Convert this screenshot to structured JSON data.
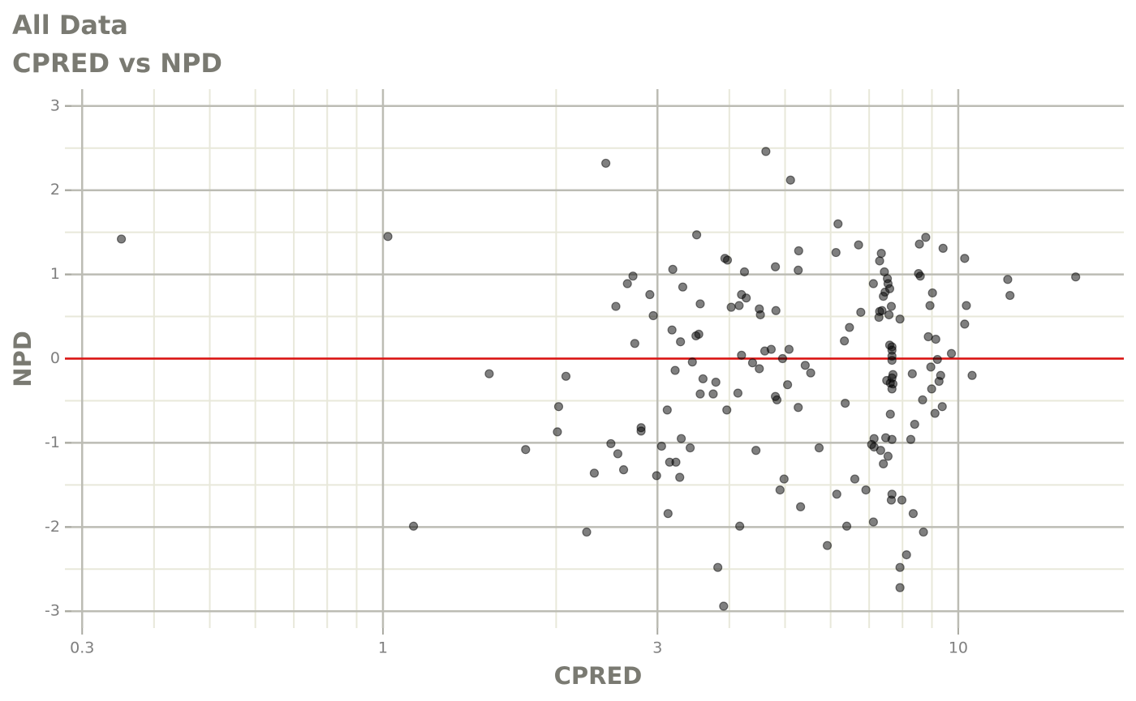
{
  "chart_data": {
    "type": "scatter",
    "title": "All Data",
    "subtitle": "CPRED vs NPD",
    "x_label": "CPRED",
    "y_label": "NPD",
    "log_x": true,
    "grid": true,
    "xlim": [
      0.28,
      19.4
    ],
    "xticks": [
      0.3,
      1,
      3,
      10
    ],
    "x_minor_grid": [
      0.4,
      0.5,
      0.6,
      0.7,
      0.8,
      0.9,
      2,
      4,
      5,
      6,
      7,
      8,
      9
    ],
    "ylim": [
      -3.2,
      3.2
    ],
    "yticks": [
      -3,
      -2,
      -1,
      0,
      1,
      2,
      3
    ],
    "y_minor_grid": [
      -2.5,
      -1.5,
      -0.5,
      0.5,
      1.5,
      2.5
    ],
    "reference_line": {
      "value": 0,
      "color": "#dd1111"
    },
    "color": "#000000",
    "opacity": 0.5,
    "x": [
      0.351,
      1.02,
      1.13,
      1.53,
      1.77,
      2.01,
      2.02,
      2.08,
      2.26,
      2.33,
      2.44,
      2.49,
      2.54,
      2.56,
      2.62,
      2.66,
      2.72,
      2.74,
      2.81,
      2.81,
      2.91,
      2.95,
      2.99,
      3.05,
      3.12,
      3.13,
      3.15,
      3.18,
      3.19,
      3.22,
      3.23,
      3.28,
      3.29,
      3.3,
      3.32,
      3.42,
      3.45,
      3.5,
      3.51,
      3.54,
      3.56,
      3.56,
      3.6,
      3.75,
      3.79,
      3.82,
      3.91,
      3.93,
      3.97,
      3.96,
      4.03,
      4.14,
      4.16,
      4.17,
      4.2,
      4.2,
      4.25,
      4.28,
      4.39,
      4.45,
      4.51,
      4.51,
      4.53,
      4.61,
      4.63,
      4.73,
      4.81,
      4.81,
      4.82,
      4.84,
      4.9,
      4.95,
      4.98,
      5.05,
      5.08,
      5.11,
      5.27,
      5.28,
      5.27,
      5.32,
      5.42,
      5.54,
      5.73,
      5.92,
      6.13,
      6.15,
      6.18,
      6.34,
      6.36,
      6.4,
      6.47,
      6.61,
      6.71,
      6.77,
      6.91,
      7.07,
      7.12,
      7.12,
      7.14,
      7.14,
      7.28,
      7.3,
      7.3,
      7.33,
      7.35,
      7.37,
      7.41,
      7.41,
      7.44,
      7.46,
      7.48,
      7.51,
      7.53,
      7.55,
      7.55,
      7.58,
      7.6,
      7.6,
      7.62,
      7.62,
      7.65,
      7.65,
      7.67,
      7.67,
      7.67,
      7.67,
      7.67,
      7.67,
      7.67,
      7.67,
      7.7,
      7.7,
      7.92,
      7.92,
      7.92,
      7.98,
      8.13,
      8.27,
      8.32,
      8.4,
      8.35,
      8.53,
      8.56,
      8.59,
      8.67,
      8.7,
      8.78,
      8.87,
      8.93,
      8.96,
      8.99,
      9.02,
      9.11,
      9.14,
      9.2,
      9.26,
      9.32,
      9.38,
      9.41,
      9.73,
      10.26,
      10.26,
      10.33,
      10.57,
      12.19,
      12.3,
      16.0
    ],
    "values": [
      1.42,
      1.45,
      -1.99,
      -0.18,
      -1.08,
      -0.87,
      -0.57,
      -0.21,
      -2.06,
      -1.36,
      2.32,
      -1.01,
      0.62,
      -1.13,
      -1.32,
      0.89,
      0.98,
      0.18,
      -0.82,
      -0.86,
      0.76,
      0.51,
      -1.39,
      -1.04,
      -0.61,
      -1.84,
      -1.23,
      0.34,
      1.06,
      -0.14,
      -1.23,
      -1.41,
      0.2,
      -0.95,
      0.85,
      -1.06,
      -0.04,
      0.27,
      1.47,
      0.29,
      0.65,
      -0.42,
      -0.24,
      -0.42,
      -0.28,
      -2.48,
      -2.94,
      1.19,
      1.17,
      -0.61,
      0.61,
      -0.41,
      0.63,
      -1.99,
      0.04,
      0.76,
      1.03,
      0.72,
      -0.05,
      -1.09,
      -0.12,
      0.59,
      0.52,
      0.09,
      2.46,
      0.11,
      -0.45,
      1.09,
      0.57,
      -0.49,
      -1.56,
      0.0,
      -1.43,
      -0.31,
      0.11,
      2.12,
      1.05,
      1.28,
      -0.58,
      -1.76,
      -0.08,
      -0.17,
      -1.06,
      -2.22,
      1.26,
      -1.61,
      1.6,
      0.21,
      -0.53,
      -1.99,
      0.37,
      -1.43,
      1.35,
      0.55,
      -1.56,
      -1.02,
      -1.94,
      0.89,
      -0.95,
      -1.05,
      0.49,
      0.56,
      1.16,
      -1.09,
      1.25,
      0.57,
      -1.25,
      0.74,
      1.03,
      0.79,
      -0.94,
      -0.26,
      0.95,
      -1.16,
      0.89,
      0.52,
      0.83,
      0.16,
      -0.29,
      -0.66,
      -1.68,
      0.62,
      -0.96,
      -1.61,
      -0.02,
      0.03,
      0.1,
      0.14,
      -0.23,
      -0.36,
      -0.3,
      -0.19,
      -2.48,
      -2.72,
      0.47,
      -1.68,
      -2.33,
      -0.96,
      -0.18,
      -0.78,
      -1.84,
      1.01,
      1.36,
      0.98,
      -0.49,
      -2.06,
      1.44,
      0.26,
      0.63,
      -0.1,
      -0.36,
      0.78,
      -0.65,
      0.23,
      -0.01,
      -0.27,
      -0.2,
      -0.57,
      1.31,
      0.06,
      0.41,
      1.19,
      0.63,
      -0.2,
      0.94,
      0.75,
      0.97
    ]
  }
}
